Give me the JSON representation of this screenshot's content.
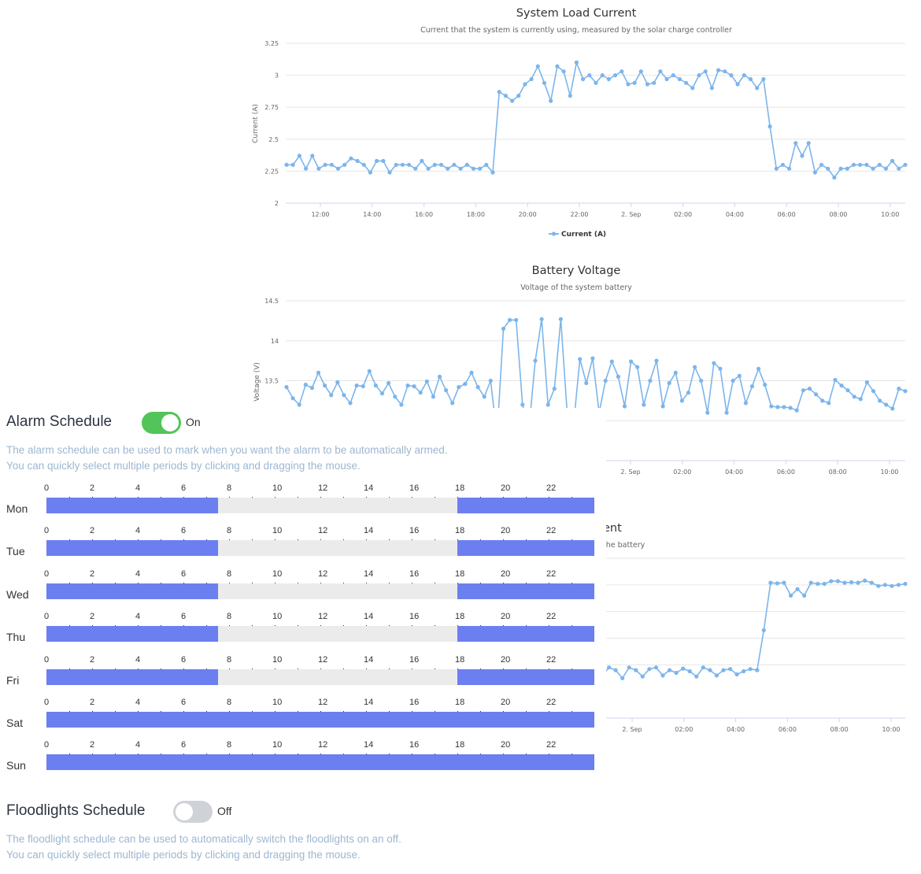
{
  "charts": [
    {
      "name": "system-load-current",
      "title": "System Load Current",
      "subtitle": "Current that the system is currently using, measured by the solar charge controller",
      "ylabel": "Current (A)",
      "yticks": [
        "3.25",
        "3",
        "2.75",
        "2.5",
        "2.25",
        "2"
      ],
      "ymin": 2,
      "ymax": 3.25,
      "xticks": [
        "12:00",
        "14:00",
        "16:00",
        "18:00",
        "20:00",
        "22:00",
        "2. Sep",
        "02:00",
        "04:00",
        "06:00",
        "08:00",
        "10:00"
      ],
      "legend": "Current (A)",
      "color": "#7cb5ec"
    },
    {
      "name": "battery-voltage",
      "title": "Battery Voltage",
      "subtitle": "Voltage of the system battery",
      "ylabel": "Voltage (V)",
      "yticks": [
        "14.5",
        "14",
        "13.5"
      ],
      "ymin": 12.5,
      "ymax": 14.5,
      "xticks": [
        "2. Sep",
        "02:00",
        "04:00",
        "06:00",
        "08:00",
        "10:00"
      ],
      "color": "#7cb5ec"
    },
    {
      "name": "battery-current",
      "title": "ent",
      "subtitle": "the battery",
      "xticks": [
        "2. Sep",
        "02:00",
        "04:00",
        "06:00",
        "08:00",
        "10:00"
      ],
      "color": "#7cb5ec"
    }
  ],
  "chart_data": [
    {
      "type": "line",
      "title": "System Load Current",
      "subtitle": "Current that the system is currently using, measured by the solar charge controller",
      "ylabel": "Current (A)",
      "xlabel": "",
      "ylim": [
        2,
        3.25
      ],
      "legend": "bottom",
      "grid": true,
      "series": [
        {
          "name": "Current (A)",
          "values": [
            2.3,
            2.3,
            2.37,
            2.27,
            2.37,
            2.27,
            2.3,
            2.3,
            2.27,
            2.3,
            2.35,
            2.33,
            2.3,
            2.24,
            2.33,
            2.33,
            2.24,
            2.3,
            2.3,
            2.3,
            2.27,
            2.33,
            2.27,
            2.3,
            2.3,
            2.27,
            2.3,
            2.27,
            2.3,
            2.27,
            2.27,
            2.3,
            2.24,
            2.87,
            2.84,
            2.8,
            2.84,
            2.93,
            2.97,
            3.07,
            2.94,
            2.8,
            3.07,
            3.03,
            2.84,
            3.1,
            2.97,
            3,
            2.94,
            3,
            2.97,
            3,
            3.03,
            2.93,
            2.94,
            3.03,
            2.93,
            2.94,
            3.03,
            2.97,
            3,
            2.97,
            2.94,
            2.9,
            3,
            3.03,
            2.9,
            3.04,
            3.03,
            3,
            2.93,
            3,
            2.97,
            2.9,
            2.97,
            2.6,
            2.27,
            2.3,
            2.27,
            2.47,
            2.37,
            2.47,
            2.24,
            2.3,
            2.27,
            2.2,
            2.27,
            2.27,
            2.3,
            2.3,
            2.3,
            2.27,
            2.3,
            2.27,
            2.33,
            2.27,
            2.3
          ]
        }
      ]
    },
    {
      "type": "line",
      "title": "Battery Voltage",
      "subtitle": "Voltage of the system battery",
      "ylabel": "Voltage (V)",
      "xlabel": "",
      "ylim": [
        12.5,
        14.5
      ],
      "grid": true,
      "series": [
        {
          "values": [
            13.42,
            13.28,
            13.2,
            13.45,
            13.41,
            13.6,
            13.44,
            13.32,
            13.48,
            13.32,
            13.22,
            13.44,
            13.43,
            13.62,
            13.44,
            13.34,
            13.47,
            13.3,
            13.2,
            13.44,
            13.43,
            13.35,
            13.49,
            13.3,
            13.55,
            13.38,
            13.22,
            13.42,
            13.46,
            13.6,
            13.42,
            13.3,
            13.5,
            12.8,
            14.15,
            14.26,
            14.26,
            13.2,
            12.9,
            13.75,
            14.27,
            13.2,
            13.4,
            14.27,
            13.1,
            12.95,
            13.77,
            13.47,
            13.78,
            13.1,
            13.5,
            13.74,
            13.55,
            13.18,
            13.74,
            13.67,
            13.2,
            13.5,
            13.75,
            13.18,
            13.47,
            13.6,
            13.25,
            13.35,
            13.67,
            13.5,
            13.1,
            13.72,
            13.65,
            13.1,
            13.5,
            13.56,
            13.22,
            13.43,
            13.65,
            13.45,
            13.18,
            13.17,
            13.17,
            13.16,
            13.13,
            13.38,
            13.4,
            13.33,
            13.25,
            13.22,
            13.51,
            13.44,
            13.38,
            13.3,
            13.27,
            13.48,
            13.37,
            13.25,
            13.2,
            13.15,
            13.4,
            13.37
          ]
        }
      ]
    },
    {
      "type": "line",
      "title": "ent",
      "subtitle": "the battery",
      "xlabel": "",
      "grid": true,
      "series": [
        {
          "values": [
            -2.7,
            -2.55,
            -2.6,
            -2.75,
            -2.55,
            -2.6,
            -2.72,
            -2.58,
            -2.55,
            -2.7,
            -2.6,
            -2.65,
            -2.57,
            -2.62,
            -2.72,
            -2.55,
            -2.6,
            -2.7,
            -2.6,
            -2.58,
            -2.68,
            -2.62,
            -2.58,
            -2.6,
            -1.85,
            -0.96,
            -0.97,
            -0.96,
            -1.2,
            -1.08,
            -1.2,
            -0.96,
            -0.98,
            -0.98,
            -0.93,
            -0.93,
            -0.96,
            -0.95,
            -0.96,
            -0.92,
            -0.96,
            -1.02,
            -1.0,
            -1.02,
            -1.0,
            -0.98
          ]
        }
      ]
    }
  ],
  "alarm": {
    "title": "Alarm Schedule",
    "toggle_state": "On",
    "enabled": true,
    "desc_line1": "The alarm schedule can be used to mark when you want the alarm to be automatically armed.",
    "desc_line2": "You can quickly select multiple periods by clicking and dragging the mouse.",
    "hour_labels": [
      "0",
      "2",
      "4",
      "6",
      "8",
      "10",
      "12",
      "14",
      "16",
      "18",
      "20",
      "22"
    ],
    "days": [
      {
        "label": "Mon",
        "active_ranges": [
          [
            0,
            7.5
          ],
          [
            18,
            24
          ]
        ]
      },
      {
        "label": "Tue",
        "active_ranges": [
          [
            0,
            7.5
          ],
          [
            18,
            24
          ]
        ]
      },
      {
        "label": "Wed",
        "active_ranges": [
          [
            0,
            7.5
          ],
          [
            18,
            24
          ]
        ]
      },
      {
        "label": "Thu",
        "active_ranges": [
          [
            0,
            7.5
          ],
          [
            18,
            24
          ]
        ]
      },
      {
        "label": "Fri",
        "active_ranges": [
          [
            0,
            7.5
          ],
          [
            18,
            24
          ]
        ]
      },
      {
        "label": "Sat",
        "active_ranges": [
          [
            0,
            24
          ]
        ]
      },
      {
        "label": "Sun",
        "active_ranges": [
          [
            0,
            24
          ]
        ]
      }
    ]
  },
  "flood": {
    "title": "Floodlights Schedule",
    "toggle_state": "Off",
    "enabled": false,
    "desc_line1": "The floodlight schedule can be used to automatically switch the floodlights on an off.",
    "desc_line2": "You can quickly select multiple periods by clicking and dragging the mouse."
  },
  "colors": {
    "series": "#7cb5ec",
    "schedule_active": "#6b7ff0",
    "schedule_inactive": "#ebebeb",
    "toggle_on": "#52c459",
    "toggle_off": "#cfd3d8",
    "description": "#9eb7d0"
  }
}
